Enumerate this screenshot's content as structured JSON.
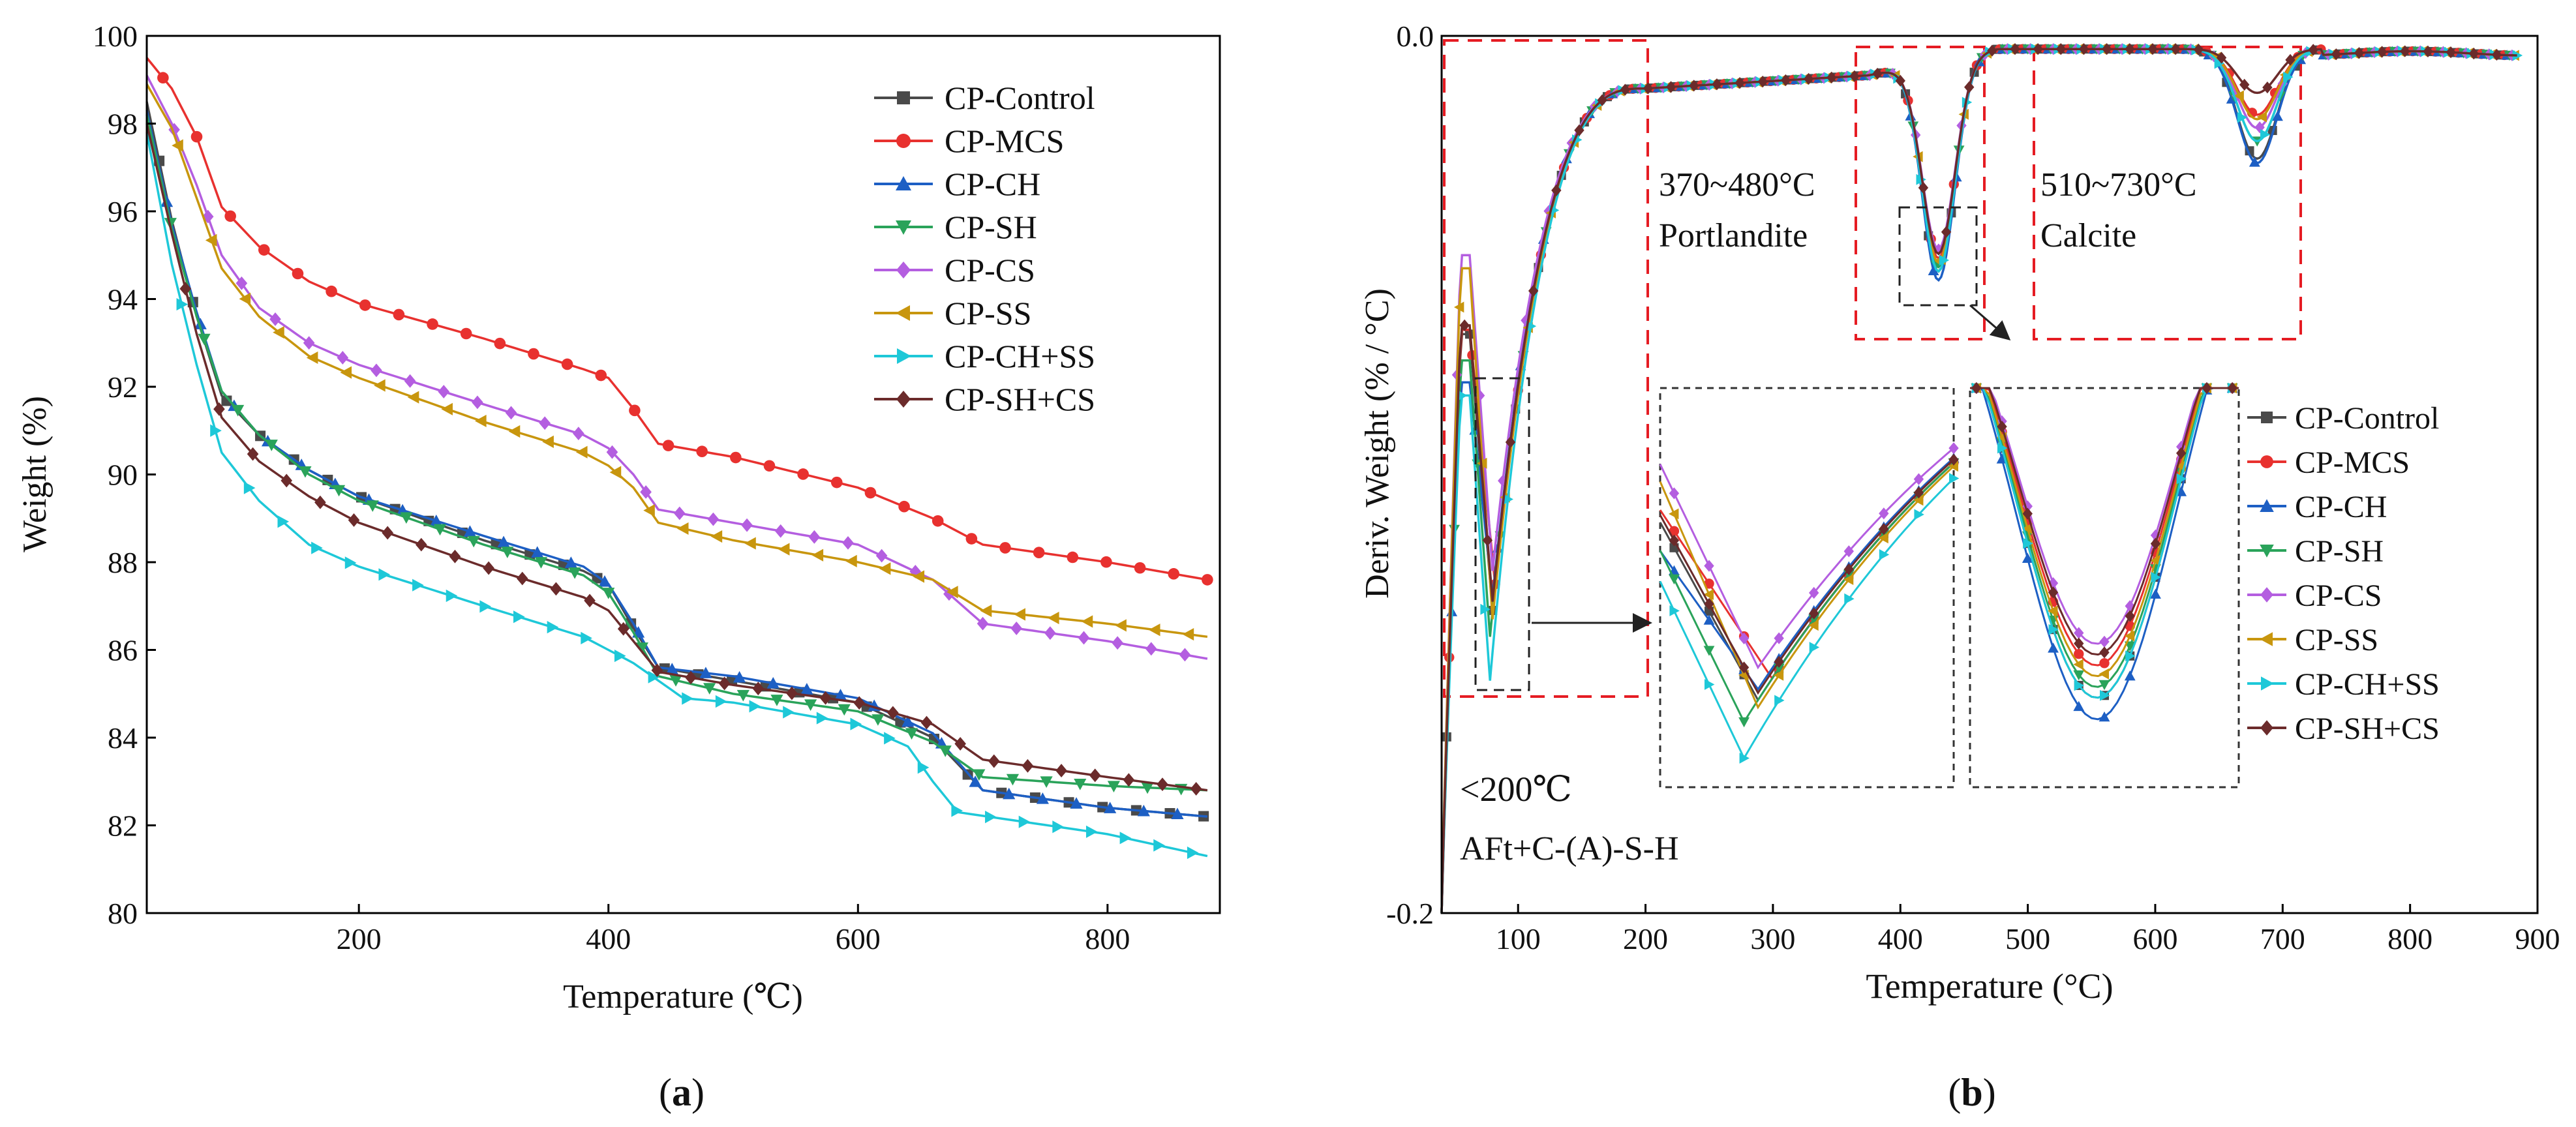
{
  "chart_data": [
    {
      "type": "line",
      "panel": "a",
      "xlabel": "Temperature (℃)",
      "ylabel": "Weight (%)",
      "xlim": [
        30,
        890
      ],
      "ylim": [
        80,
        100
      ],
      "xticks": [
        200,
        400,
        600,
        800
      ],
      "yticks": [
        80,
        82,
        84,
        86,
        88,
        90,
        92,
        94,
        96,
        98,
        100
      ],
      "legend_position": "top-right",
      "series": [
        {
          "name": "CP-Control",
          "color": "#4a4a4a",
          "marker": "square",
          "points": [
            [
              30,
              98.5
            ],
            [
              50,
              95.8
            ],
            [
              70,
              93.6
            ],
            [
              90,
              91.8
            ],
            [
              120,
              90.9
            ],
            [
              160,
              90.1
            ],
            [
              200,
              89.5
            ],
            [
              300,
              88.5
            ],
            [
              380,
              87.8
            ],
            [
              400,
              87.5
            ],
            [
              420,
              86.5
            ],
            [
              440,
              85.6
            ],
            [
              500,
              85.3
            ],
            [
              600,
              84.8
            ],
            [
              660,
              84.0
            ],
            [
              700,
              82.8
            ],
            [
              800,
              82.4
            ],
            [
              880,
              82.2
            ]
          ]
        },
        {
          "name": "CP-MCS",
          "color": "#e8312f",
          "marker": "circle",
          "points": [
            [
              30,
              99.5
            ],
            [
              50,
              98.8
            ],
            [
              70,
              97.7
            ],
            [
              90,
              96.1
            ],
            [
              120,
              95.2
            ],
            [
              160,
              94.4
            ],
            [
              200,
              93.9
            ],
            [
              300,
              93.1
            ],
            [
              380,
              92.4
            ],
            [
              400,
              92.2
            ],
            [
              420,
              91.5
            ],
            [
              440,
              90.7
            ],
            [
              500,
              90.4
            ],
            [
              600,
              89.7
            ],
            [
              660,
              89.0
            ],
            [
              700,
              88.4
            ],
            [
              800,
              88.0
            ],
            [
              880,
              87.6
            ]
          ]
        },
        {
          "name": "CP-CH",
          "color": "#1d5fc4",
          "marker": "triangle-up",
          "points": [
            [
              30,
              98.3
            ],
            [
              50,
              95.7
            ],
            [
              70,
              93.7
            ],
            [
              90,
              91.9
            ],
            [
              120,
              90.9
            ],
            [
              160,
              90.1
            ],
            [
              200,
              89.5
            ],
            [
              300,
              88.6
            ],
            [
              380,
              87.9
            ],
            [
              400,
              87.5
            ],
            [
              420,
              86.6
            ],
            [
              440,
              85.6
            ],
            [
              500,
              85.4
            ],
            [
              600,
              84.9
            ],
            [
              660,
              84.1
            ],
            [
              700,
              82.8
            ],
            [
              800,
              82.4
            ],
            [
              880,
              82.2
            ]
          ]
        },
        {
          "name": "CP-SH",
          "color": "#2aa35a",
          "marker": "triangle-down",
          "points": [
            [
              30,
              98.2
            ],
            [
              50,
              95.6
            ],
            [
              70,
              93.6
            ],
            [
              90,
              91.9
            ],
            [
              120,
              90.9
            ],
            [
              160,
              90.0
            ],
            [
              200,
              89.4
            ],
            [
              300,
              88.4
            ],
            [
              380,
              87.7
            ],
            [
              400,
              87.3
            ],
            [
              420,
              86.4
            ],
            [
              440,
              85.4
            ],
            [
              500,
              85.0
            ],
            [
              600,
              84.6
            ],
            [
              660,
              83.9
            ],
            [
              700,
              83.1
            ],
            [
              800,
              82.9
            ],
            [
              880,
              82.8
            ]
          ]
        },
        {
          "name": "CP-CS",
          "color": "#b45ee0",
          "marker": "diamond",
          "points": [
            [
              30,
              99.1
            ],
            [
              50,
              98.0
            ],
            [
              70,
              96.6
            ],
            [
              90,
              95.0
            ],
            [
              120,
              93.8
            ],
            [
              160,
              93.0
            ],
            [
              200,
              92.5
            ],
            [
              300,
              91.6
            ],
            [
              380,
              90.9
            ],
            [
              400,
              90.6
            ],
            [
              420,
              90.0
            ],
            [
              440,
              89.2
            ],
            [
              500,
              88.9
            ],
            [
              600,
              88.4
            ],
            [
              660,
              87.6
            ],
            [
              700,
              86.6
            ],
            [
              800,
              86.2
            ],
            [
              880,
              85.8
            ]
          ]
        },
        {
          "name": "CP-SS",
          "color": "#c8960e",
          "marker": "triangle-left",
          "points": [
            [
              30,
              98.9
            ],
            [
              50,
              97.9
            ],
            [
              70,
              96.3
            ],
            [
              90,
              94.7
            ],
            [
              120,
              93.6
            ],
            [
              160,
              92.7
            ],
            [
              200,
              92.2
            ],
            [
              300,
              91.2
            ],
            [
              380,
              90.5
            ],
            [
              400,
              90.2
            ],
            [
              420,
              89.7
            ],
            [
              440,
              88.9
            ],
            [
              500,
              88.5
            ],
            [
              600,
              88.0
            ],
            [
              660,
              87.6
            ],
            [
              700,
              86.9
            ],
            [
              800,
              86.6
            ],
            [
              880,
              86.3
            ]
          ]
        },
        {
          "name": "CP-CH+SS",
          "color": "#1ec8d8",
          "marker": "triangle-right",
          "points": [
            [
              30,
              97.8
            ],
            [
              50,
              94.8
            ],
            [
              70,
              92.5
            ],
            [
              90,
              90.5
            ],
            [
              120,
              89.4
            ],
            [
              160,
              88.4
            ],
            [
              200,
              87.9
            ],
            [
              300,
              87.0
            ],
            [
              380,
              86.3
            ],
            [
              400,
              86.0
            ],
            [
              420,
              85.7
            ],
            [
              440,
              85.3
            ],
            [
              460,
              84.9
            ],
            [
              500,
              84.8
            ],
            [
              600,
              84.3
            ],
            [
              640,
              83.8
            ],
            [
              660,
              83.0
            ],
            [
              680,
              82.3
            ],
            [
              800,
              81.8
            ],
            [
              880,
              81.3
            ]
          ]
        },
        {
          "name": "CP-SH+CS",
          "color": "#6b2b2b",
          "marker": "diamond",
          "points": [
            [
              30,
              98.0
            ],
            [
              50,
              95.5
            ],
            [
              70,
              93.2
            ],
            [
              90,
              91.3
            ],
            [
              120,
              90.3
            ],
            [
              160,
              89.5
            ],
            [
              200,
              88.9
            ],
            [
              300,
              87.9
            ],
            [
              380,
              87.2
            ],
            [
              400,
              86.9
            ],
            [
              420,
              86.2
            ],
            [
              440,
              85.5
            ],
            [
              500,
              85.2
            ],
            [
              600,
              84.8
            ],
            [
              660,
              84.3
            ],
            [
              700,
              83.5
            ],
            [
              800,
              83.1
            ],
            [
              880,
              82.8
            ]
          ]
        }
      ]
    },
    {
      "type": "line",
      "panel": "b",
      "xlabel": "Temperature (°C)",
      "ylabel": "Deriv. Weight (% / °C)",
      "xlim": [
        40,
        900
      ],
      "ylim": [
        -0.2,
        0.0
      ],
      "xticks": [
        100,
        200,
        300,
        400,
        500,
        600,
        700,
        800,
        900
      ],
      "yticks": [
        -0.2,
        0.0
      ],
      "legend_position": "right",
      "annotations": {
        "portlandite_range": "370~480°C",
        "portlandite_label": "Portlandite",
        "calcite_range": "510~730°C",
        "calcite_label": "Calcite",
        "low_range": "<200℃",
        "low_label": "AFt+C-(A)-S-H"
      },
      "series": [
        {
          "name": "CP-Control",
          "color": "#4a4a4a",
          "marker": "square",
          "e1": -0.131,
          "e2": -0.058,
          "e3": -0.028,
          "e1x": 80,
          "p1": -0.068
        },
        {
          "name": "CP-MCS",
          "color": "#e8312f",
          "marker": "circle",
          "e1": -0.125,
          "e2": -0.055,
          "e3": -0.018,
          "e1x": 82,
          "p1": -0.067
        },
        {
          "name": "CP-CH",
          "color": "#1d5fc4",
          "marker": "triangle-up",
          "e1": -0.128,
          "e2": -0.06,
          "e3": -0.029,
          "e1x": 80,
          "p1": -0.079
        },
        {
          "name": "CP-SH",
          "color": "#2aa35a",
          "marker": "triangle-down",
          "e1": -0.137,
          "e2": -0.057,
          "e3": -0.024,
          "e1x": 78,
          "p1": -0.074
        },
        {
          "name": "CP-CS",
          "color": "#b45ee0",
          "marker": "diamond",
          "e1": -0.122,
          "e2": -0.053,
          "e3": -0.021,
          "e1x": 80,
          "p1": -0.05
        },
        {
          "name": "CP-SS",
          "color": "#c8960e",
          "marker": "triangle-left",
          "e1": -0.133,
          "e2": -0.056,
          "e3": -0.019,
          "e1x": 80,
          "p1": -0.053
        },
        {
          "name": "CP-CH+SS",
          "color": "#1ec8d8",
          "marker": "triangle-right",
          "e1": -0.147,
          "e2": -0.058,
          "e3": -0.024,
          "e1x": 78,
          "p1": -0.082
        },
        {
          "name": "CP-SH+CS",
          "color": "#6b2b2b",
          "marker": "diamond",
          "e1": -0.129,
          "e2": -0.054,
          "e3": -0.013,
          "e1x": 80,
          "p1": -0.066
        }
      ]
    }
  ],
  "panel_labels": {
    "a": "a",
    "b": "b"
  }
}
